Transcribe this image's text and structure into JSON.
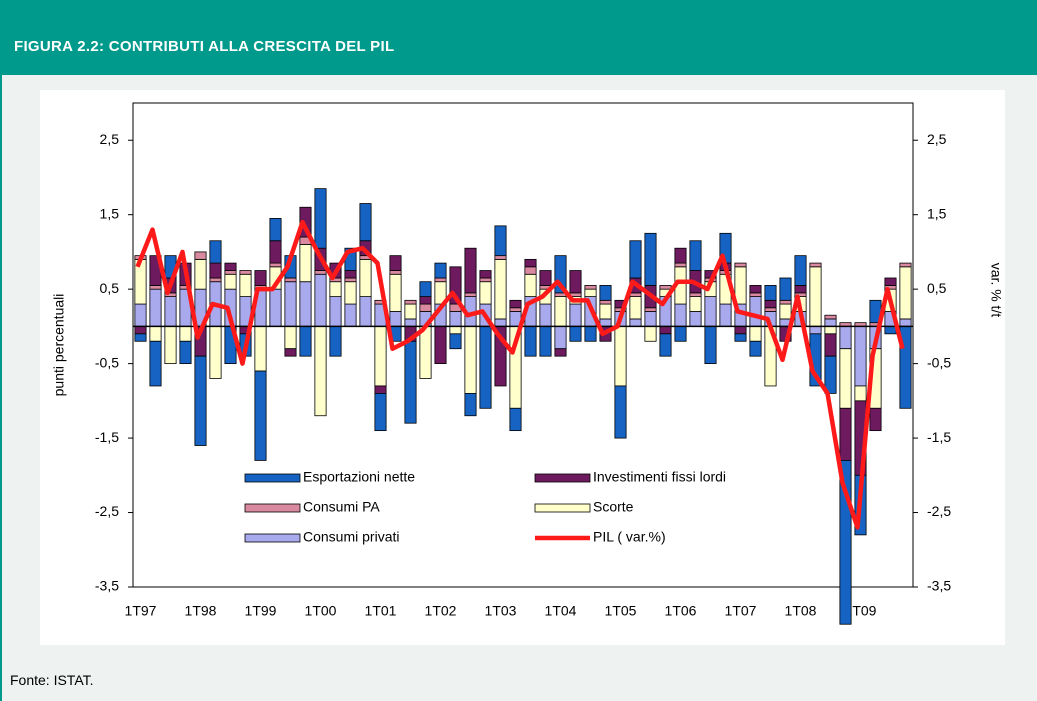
{
  "header": {
    "title": "FIGURA 2.2: CONTRIBUTI ALLA CRESCITA DEL PIL"
  },
  "source": "Fonte: ISTAT.",
  "chart_data": {
    "type": "bar",
    "stacked": true,
    "ylabel": "punti percentuali",
    "y2label": "var. % t/t",
    "categories": [
      "1T97",
      null,
      null,
      null,
      "1T98",
      null,
      null,
      null,
      "1T99",
      null,
      null,
      null,
      "1T00",
      null,
      null,
      null,
      "1T01",
      null,
      null,
      null,
      "1T02",
      null,
      null,
      null,
      "1T03",
      null,
      null,
      null,
      "1T04",
      null,
      null,
      null,
      "1T05",
      null,
      null,
      null,
      "1T06",
      null,
      null,
      null,
      "1T07",
      null,
      null,
      null,
      "1T08",
      null,
      null,
      null,
      "1T09",
      null,
      null,
      null
    ],
    "ylim": [
      -3.5,
      3
    ],
    "yticks": [
      {
        "value": -3.5,
        "label": "-3,5"
      },
      {
        "value": -2.5,
        "label": "-2,5"
      },
      {
        "value": -1.5,
        "label": "-1,5"
      },
      {
        "value": -0.5,
        "label": "-0,5"
      },
      {
        "value": 0.5,
        "label": "0,5"
      },
      {
        "value": 1.5,
        "label": "1,5"
      },
      {
        "value": 2.5,
        "label": "2,5"
      }
    ],
    "y2lim": [
      -3.5,
      3
    ],
    "y2ticks": [
      {
        "value": -3.5,
        "label": "-3,5"
      },
      {
        "value": -2.5,
        "label": "-2,5"
      },
      {
        "value": -1.5,
        "label": "-1,5"
      },
      {
        "value": -0.5,
        "label": "-0,5"
      },
      {
        "value": 0.5,
        "label": "0,5"
      },
      {
        "value": 1.5,
        "label": "1,5"
      },
      {
        "value": 2.5,
        "label": "2,5"
      }
    ],
    "series": [
      {
        "name": "Esportazioni nette",
        "color": "#1763c4",
        "values": [
          -0.1,
          -0.6,
          0.3,
          -0.3,
          -1.2,
          0.3,
          -0.5,
          -0.3,
          -1.2,
          0.3,
          0.3,
          -0.4,
          0.8,
          -0.4,
          0.3,
          0.5,
          -0.5,
          -0.2,
          -1.1,
          0.2,
          0.2,
          -0.2,
          -0.3,
          -1.1,
          0.4,
          -0.3,
          -0.4,
          -0.4,
          0.5,
          -0.2,
          -0.2,
          0.2,
          -0.7,
          0.5,
          0.7,
          -0.3,
          -0.2,
          0.4,
          -0.5,
          0.4,
          -0.1,
          -0.2,
          0.2,
          0.3,
          0.4,
          -0.7,
          -0.5,
          -2.2,
          -0.8,
          0.3,
          -0.1,
          -1.1
        ]
      },
      {
        "name": "Investimenti fissi lordi",
        "color": "#6e1a5e",
        "values": [
          -0.1,
          0.4,
          0.2,
          0.3,
          -0.4,
          0.2,
          0.1,
          -0.1,
          0.2,
          0.3,
          -0.1,
          0.4,
          0.3,
          0.2,
          0.1,
          0.2,
          -0.1,
          0.2,
          -0.2,
          0.1,
          -0.5,
          0.5,
          0.6,
          0.1,
          -0.8,
          0.1,
          0.1,
          0.2,
          -0.1,
          0.3,
          0.0,
          -0.2,
          0.1,
          0.2,
          0.3,
          -0.1,
          0.2,
          0.3,
          0.1,
          0.1,
          -0.1,
          0.1,
          0.1,
          -0.2,
          0.1,
          0.0,
          -0.3,
          -0.7,
          -1.0,
          -0.3,
          0.1,
          0.0
        ]
      },
      {
        "name": "Consumi PA",
        "color": "#d98aa0",
        "values": [
          0.05,
          0.05,
          0.05,
          0.05,
          0.1,
          0.05,
          0.05,
          0.05,
          0.05,
          0.05,
          0.05,
          0.1,
          0.05,
          0.05,
          0.05,
          0.05,
          0.05,
          0.05,
          0.05,
          0.1,
          0.05,
          0.1,
          0.05,
          0.05,
          0.05,
          0.05,
          0.1,
          0.05,
          0.05,
          0.05,
          0.05,
          0.05,
          0.05,
          0.05,
          0.05,
          0.05,
          0.05,
          0.05,
          0.05,
          0.05,
          0.05,
          0.05,
          0.05,
          0.05,
          0.05,
          0.05,
          0.05,
          0.05,
          0.05,
          0.05,
          0.05,
          0.05
        ]
      },
      {
        "name": "Scorte",
        "color": "#ffffcc",
        "values": [
          0.6,
          -0.2,
          -0.5,
          -0.2,
          0.4,
          -0.7,
          0.2,
          0.3,
          -0.6,
          0.3,
          -0.3,
          0.5,
          -1.2,
          0.2,
          0.3,
          0.5,
          -0.8,
          0.5,
          0.2,
          -0.7,
          0.3,
          -0.1,
          -0.9,
          0.3,
          0.8,
          -1.1,
          0.3,
          0.2,
          0.4,
          0.1,
          0.1,
          0.2,
          -0.8,
          0.3,
          -0.2,
          0.1,
          0.5,
          0.2,
          0.2,
          0.4,
          0.5,
          -0.2,
          -0.8,
          0.2,
          0.2,
          0.8,
          -0.1,
          -0.8,
          -0.2,
          -0.8,
          0.3,
          0.7
        ]
      },
      {
        "name": "Consumi privati",
        "color": "#a9a9ee",
        "values": [
          0.3,
          0.5,
          0.4,
          0.5,
          0.5,
          0.6,
          0.5,
          0.4,
          0.5,
          0.5,
          0.6,
          0.6,
          0.7,
          0.4,
          0.3,
          0.4,
          0.3,
          0.2,
          0.1,
          0.2,
          0.3,
          0.2,
          0.4,
          0.3,
          0.1,
          0.2,
          0.4,
          0.3,
          -0.3,
          0.3,
          0.4,
          0.1,
          0.2,
          0.1,
          0.2,
          0.4,
          0.3,
          0.2,
          0.4,
          0.3,
          0.3,
          0.4,
          0.2,
          0.1,
          0.2,
          -0.1,
          0.1,
          -0.3,
          -0.8,
          -0.3,
          0.2,
          0.1
        ]
      },
      {
        "name": "PIL ( var.%)",
        "color": "#ff1a1a",
        "type": "line",
        "axis": "y2",
        "values": [
          0.8,
          1.3,
          0.45,
          1.0,
          -0.15,
          0.3,
          0.25,
          -0.5,
          0.5,
          0.5,
          0.8,
          1.4,
          1.0,
          0.65,
          1.0,
          1.05,
          0.85,
          -0.3,
          -0.2,
          -0.05,
          0.2,
          0.45,
          0.15,
          0.2,
          -0.1,
          -0.35,
          0.3,
          0.4,
          0.6,
          0.35,
          0.35,
          -0.1,
          0.0,
          0.6,
          0.45,
          0.3,
          0.6,
          0.6,
          0.5,
          0.95,
          0.2,
          0.15,
          0.1,
          -0.45,
          0.4,
          -0.6,
          -0.9,
          -2.1,
          -2.7,
          -0.4,
          0.5,
          -0.3
        ]
      }
    ]
  }
}
